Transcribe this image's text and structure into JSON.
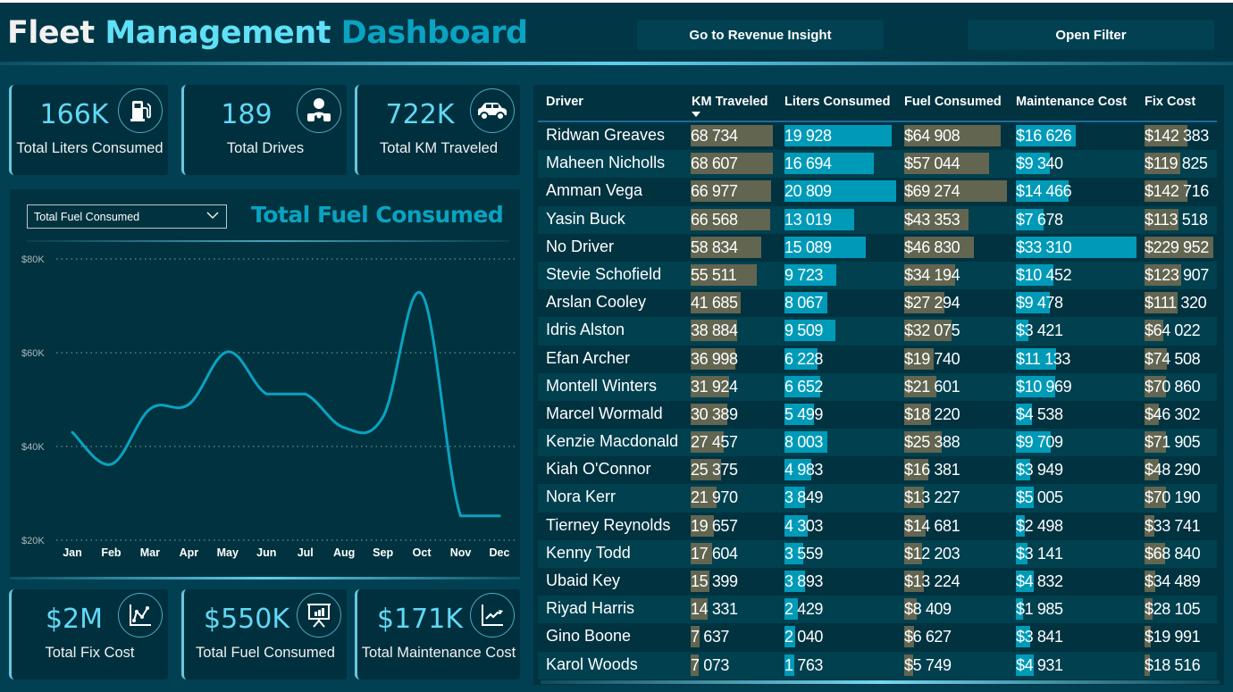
{
  "header": {
    "title_parts": [
      "Fleet",
      "Management",
      "Dashboard"
    ],
    "buttons": {
      "revenue": "Go to Revenue Insight",
      "filter": "Open Filter"
    }
  },
  "kpis_top": [
    {
      "value": "166K",
      "label": "Total Liters Consumed",
      "icon": "fuel-pump-icon"
    },
    {
      "value": "189",
      "label": "Total Drives",
      "icon": "driver-icon"
    },
    {
      "value": "722K",
      "label": "Total KM Traveled",
      "icon": "car-icon"
    }
  ],
  "kpis_bottom": [
    {
      "value": "$2M",
      "label": "Total Fix Cost",
      "icon": "line-chart-icon"
    },
    {
      "value": "$550K",
      "label": "Total Fuel Consumed",
      "icon": "presentation-icon"
    },
    {
      "value": "$171K",
      "label": "Total Maintenance Cost",
      "icon": "trend-up-icon"
    }
  ],
  "chart_panel": {
    "dropdown_value": "Total Fuel Consumed",
    "title": "Total Fuel Consumed"
  },
  "chart_data": {
    "type": "line",
    "title": "Total Fuel Consumed",
    "xlabel": "",
    "ylabel": "",
    "categories": [
      "Jan",
      "Feb",
      "Mar",
      "Apr",
      "May",
      "Jun",
      "Jul",
      "Aug",
      "Sep",
      "Oct",
      "Nov",
      "Dec"
    ],
    "values": [
      43000,
      36200,
      48000,
      49000,
      60200,
      51200,
      51200,
      44000,
      46300,
      72500,
      25200,
      25200
    ],
    "yticks": [
      "$20K",
      "$40K",
      "$60K",
      "$80K"
    ],
    "ytick_values": [
      20000,
      40000,
      60000,
      80000
    ],
    "ylim": [
      20000,
      80000
    ],
    "grid": true,
    "line_color": "#0aa3c2"
  },
  "table": {
    "columns": [
      "Driver",
      "KM Traveled",
      "Liters Consumed",
      "Fuel Consumed",
      "Maintenance Cost",
      "Fix Cost"
    ],
    "sorted_column": "KM Traveled",
    "sort_direction": "descending",
    "colors": {
      "olive": "#626550",
      "blue": "#009ab9"
    },
    "rows": [
      {
        "driver": "Ridwan Greaves",
        "km": "68 734",
        "liters": "19 928",
        "fuel": "$64 908",
        "maint": "$16 626",
        "fix": "$142 383"
      },
      {
        "driver": "Maheen Nicholls",
        "km": "68 607",
        "liters": "16 694",
        "fuel": "$57 044",
        "maint": "$9 340",
        "fix": "$119 825"
      },
      {
        "driver": "Amman Vega",
        "km": "66 977",
        "liters": "20 809",
        "fuel": "$69 274",
        "maint": "$14 466",
        "fix": "$142 716"
      },
      {
        "driver": "Yasin Buck",
        "km": "66 568",
        "liters": "13 019",
        "fuel": "$43 353",
        "maint": "$7 678",
        "fix": "$113 518"
      },
      {
        "driver": "No Driver",
        "km": "58 834",
        "liters": "15 089",
        "fuel": "$46 830",
        "maint": "$33 310",
        "fix": "$229 952"
      },
      {
        "driver": "Stevie Schofield",
        "km": "55 511",
        "liters": "9 723",
        "fuel": "$34 194",
        "maint": "$10 452",
        "fix": "$123 907"
      },
      {
        "driver": "Arslan Cooley",
        "km": "41 685",
        "liters": "8 067",
        "fuel": "$27 294",
        "maint": "$9 478",
        "fix": "$111 320"
      },
      {
        "driver": "Idris Alston",
        "km": "38 884",
        "liters": "9 509",
        "fuel": "$32 075",
        "maint": "$3 421",
        "fix": "$64 022"
      },
      {
        "driver": "Efan Archer",
        "km": "36 998",
        "liters": "6 228",
        "fuel": "$19 740",
        "maint": "$11 133",
        "fix": "$74 508"
      },
      {
        "driver": "Montell Winters",
        "km": "31 924",
        "liters": "6 652",
        "fuel": "$21 601",
        "maint": "$10 969",
        "fix": "$70 860"
      },
      {
        "driver": "Marcel Wormald",
        "km": "30 389",
        "liters": "5 499",
        "fuel": "$18 220",
        "maint": "$4 538",
        "fix": "$46 302"
      },
      {
        "driver": "Kenzie Macdonald",
        "km": "27 457",
        "liters": "8 003",
        "fuel": "$25 388",
        "maint": "$9 709",
        "fix": "$71 905"
      },
      {
        "driver": "Kiah O'Connor",
        "km": "25 375",
        "liters": "4 983",
        "fuel": "$16 381",
        "maint": "$3 949",
        "fix": "$48 290"
      },
      {
        "driver": "Nora Kerr",
        "km": "21 970",
        "liters": "3 849",
        "fuel": "$13 227",
        "maint": "$5 005",
        "fix": "$70 190"
      },
      {
        "driver": "Tierney Reynolds",
        "km": "19 657",
        "liters": "4 303",
        "fuel": "$14 681",
        "maint": "$2 498",
        "fix": "$33 741"
      },
      {
        "driver": "Kenny Todd",
        "km": "17 604",
        "liters": "3 559",
        "fuel": "$12 203",
        "maint": "$3 141",
        "fix": "$68 840"
      },
      {
        "driver": "Ubaid Key",
        "km": "15 399",
        "liters": "3 893",
        "fuel": "$13 224",
        "maint": "$4 832",
        "fix": "$34 489"
      },
      {
        "driver": "Riyad Harris",
        "km": "14 331",
        "liters": "2 429",
        "fuel": "$8 409",
        "maint": "$1 985",
        "fix": "$28 105"
      },
      {
        "driver": "Gino Boone",
        "km": "7 637",
        "liters": "2 040",
        "fuel": "$6 627",
        "maint": "$3 841",
        "fix": "$19 991"
      },
      {
        "driver": "Karol Woods",
        "km": "7 073",
        "liters": "1 763",
        "fuel": "$5 749",
        "maint": "$4 931",
        "fix": "$18 516"
      }
    ]
  }
}
